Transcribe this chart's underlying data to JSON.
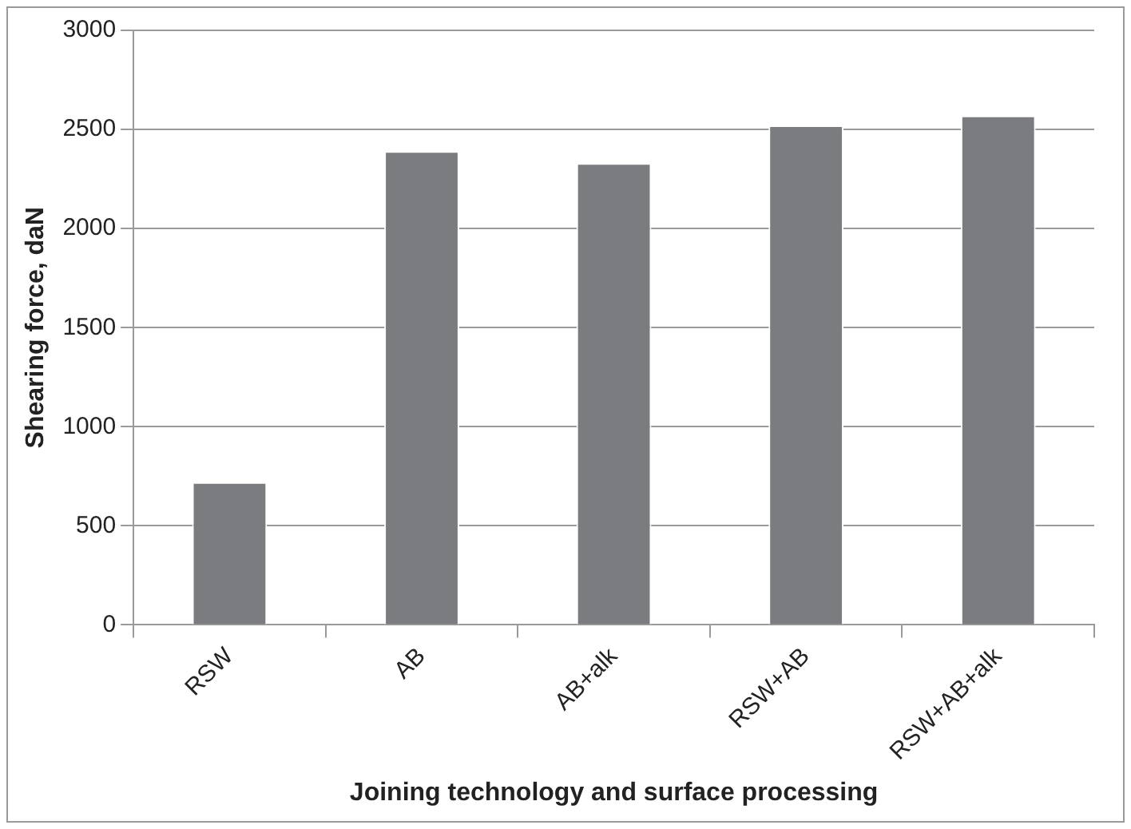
{
  "chart_data": {
    "type": "bar",
    "xlabel": "Joining technology and surface processing",
    "ylabel": "Shearing force, daN",
    "categories": [
      "RSW",
      "AB",
      "AB+alk",
      "RSW+AB",
      "RSW+AB+alk"
    ],
    "values": [
      720,
      2390,
      2330,
      2520,
      2570
    ],
    "color": "#7b7c80",
    "ylim": [
      0,
      3000
    ],
    "yticks": [
      0,
      500,
      1000,
      1500,
      2000,
      2500,
      3000
    ],
    "grid": "y",
    "legend": false
  }
}
